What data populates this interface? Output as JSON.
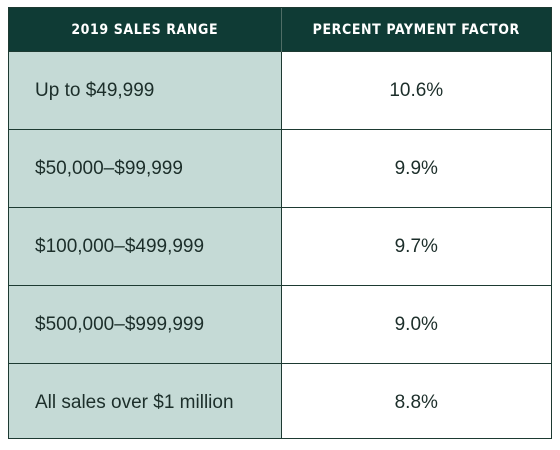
{
  "table": {
    "headers": [
      "2019 SALES RANGE",
      "PERCENT PAYMENT FACTOR"
    ],
    "rows": [
      {
        "range": "Up to $49,999",
        "factor": "10.6%"
      },
      {
        "range": "$50,000–$99,999",
        "factor": "9.9%"
      },
      {
        "range": "$100,000–$499,999",
        "factor": "9.7%"
      },
      {
        "range": "$500,000–$999,999",
        "factor": "9.0%"
      },
      {
        "range": "All sales over $1 million",
        "factor": "8.8%"
      }
    ]
  },
  "colors": {
    "header_bg": "#0f3b35",
    "header_text": "#ffffff",
    "range_cell_bg": "#c5dad6",
    "factor_cell_bg": "#ffffff",
    "border": "#1d3a32",
    "body_text": "#1c2e2a"
  }
}
